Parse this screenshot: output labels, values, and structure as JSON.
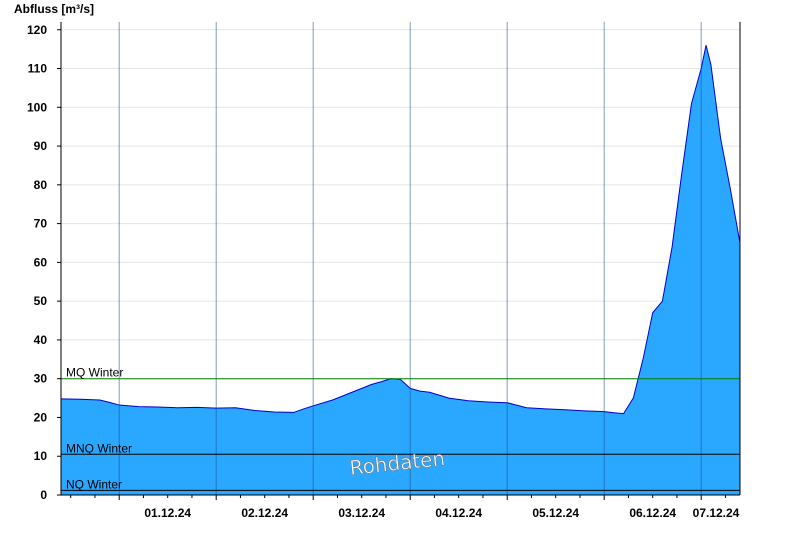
{
  "chart_data": {
    "type": "area",
    "ylabel": "Abfluss [m³/s]",
    "ylim": [
      0,
      122
    ],
    "y_ticks": [
      0,
      10,
      20,
      30,
      40,
      50,
      60,
      70,
      80,
      90,
      100,
      110,
      120
    ],
    "y_tick_labels": [
      "0",
      "10",
      "20",
      "30",
      "40",
      "50",
      "60",
      "70",
      "80",
      "90",
      "100",
      "110",
      "120"
    ],
    "x_unit": "days since 30.11.24 00:00",
    "xlim": [
      0.4,
      7.4
    ],
    "x_ticks": [
      1.5,
      2.5,
      3.5,
      4.5,
      5.5,
      6.5,
      7.5
    ],
    "x_tick_labels": [
      "01.12.24",
      "02.12.24",
      "03.12.24",
      "04.12.24",
      "05.12.24",
      "06.12.24",
      "07.12.24"
    ],
    "day_boundaries": [
      1.0,
      2.0,
      3.0,
      4.0,
      5.0,
      6.0,
      7.0
    ],
    "grid": true,
    "watermark": "Rohdaten",
    "reference_lines": [
      {
        "name": "MQ Winter",
        "value": 30,
        "color": "#008000"
      },
      {
        "name": "MNQ Winter",
        "value": 10.5,
        "color": "#000000"
      },
      {
        "name": "NQ Winter",
        "value": 1.2,
        "color": "#000000"
      }
    ],
    "series": [
      {
        "name": "Abfluss",
        "fill": "#2aa7ff",
        "line": "#0000cc",
        "x": [
          0.4,
          0.6,
          0.8,
          0.9,
          1.0,
          1.2,
          1.4,
          1.6,
          1.8,
          2.0,
          2.2,
          2.4,
          2.6,
          2.8,
          2.9,
          3.0,
          3.2,
          3.4,
          3.6,
          3.7,
          3.8,
          3.9,
          4.0,
          4.1,
          4.2,
          4.4,
          4.6,
          4.8,
          5.0,
          5.2,
          5.4,
          5.6,
          5.8,
          6.0,
          6.1,
          6.2,
          6.3,
          6.4,
          6.5,
          6.6,
          6.7,
          6.8,
          6.9,
          7.0,
          7.05,
          7.1,
          7.2,
          7.3,
          7.4
        ],
        "y": [
          24.8,
          24.7,
          24.5,
          23.9,
          23.2,
          22.8,
          22.7,
          22.5,
          22.6,
          22.4,
          22.5,
          21.8,
          21.4,
          21.3,
          22.2,
          23.0,
          24.5,
          26.5,
          28.5,
          29.2,
          30.0,
          29.8,
          27.5,
          26.8,
          26.5,
          25.0,
          24.3,
          24.0,
          23.8,
          22.5,
          22.2,
          22.0,
          21.7,
          21.5,
          21.2,
          21.0,
          25.0,
          35.0,
          47.0,
          50.0,
          64.0,
          83.0,
          101.0,
          110.0,
          116.0,
          111.0,
          92.0,
          79.0,
          65.0
        ]
      }
    ]
  }
}
